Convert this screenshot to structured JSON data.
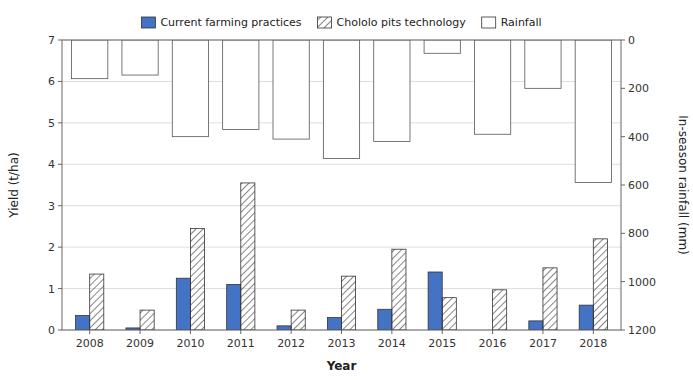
{
  "chart_data": {
    "type": "bar",
    "categories": [
      2008,
      2009,
      2010,
      2011,
      2012,
      2013,
      2014,
      2015,
      2016,
      2017,
      2018
    ],
    "series": [
      {
        "name": "Current farming practices",
        "color": "#4472C4",
        "values": [
          0.35,
          0.05,
          1.25,
          1.1,
          0.1,
          0.3,
          0.5,
          1.4,
          0.0,
          0.22,
          0.6
        ]
      },
      {
        "name": "Chololo pits technology",
        "color": "#ffffff",
        "values": [
          1.35,
          0.48,
          2.45,
          3.55,
          0.48,
          1.3,
          1.95,
          0.78,
          0.97,
          1.5,
          2.2
        ]
      },
      {
        "name": "Rainfall",
        "color": "#ffffff",
        "axis": "y2",
        "values": [
          160,
          145,
          400,
          370,
          410,
          490,
          420,
          55,
          390,
          200,
          590
        ]
      }
    ],
    "xlabel": "Year",
    "ylabel": "Yield (t/ha)",
    "y2label": "In-season rainfall (mm)",
    "ylim": [
      0,
      7
    ],
    "yticks": [
      0,
      1,
      2,
      3,
      4,
      5,
      6,
      7
    ],
    "y2lim": [
      1200,
      0
    ],
    "y2ticks": [
      0,
      200,
      400,
      600,
      800,
      1000,
      1200
    ],
    "grid": true,
    "legend": "top"
  }
}
